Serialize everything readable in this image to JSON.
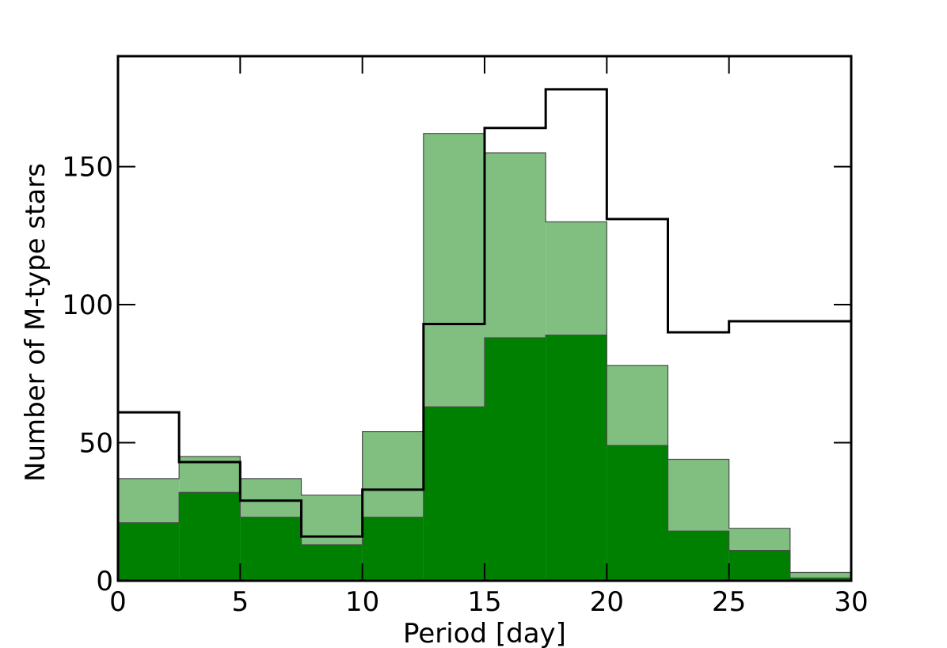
{
  "chart_data": {
    "type": "bar",
    "title": "",
    "xlabel": "Period [day]",
    "ylabel": "Number of M-type stars",
    "xlim": [
      0,
      30
    ],
    "ylim": [
      0,
      190
    ],
    "grid": false,
    "bin_edges": [
      0,
      2.5,
      5,
      7.5,
      10,
      12.5,
      15,
      17.5,
      20,
      22.5,
      25,
      27.5,
      30
    ],
    "x_ticks": [
      "0",
      "5",
      "10",
      "15",
      "20",
      "25",
      "30"
    ],
    "y_ticks": [
      "0",
      "50",
      "100",
      "150"
    ],
    "series": [
      {
        "style": "filled",
        "color": "#80bf80",
        "values": [
          37,
          45,
          37,
          31,
          54,
          162,
          155,
          130,
          78,
          44,
          19,
          3
        ]
      },
      {
        "style": "filled",
        "color": "#008000",
        "values": [
          21,
          32,
          23,
          13,
          23,
          63,
          88,
          89,
          49,
          18,
          11,
          1
        ]
      },
      {
        "style": "step",
        "color": "#000000",
        "values": [
          61,
          43,
          29,
          16,
          33,
          93,
          164,
          178,
          131,
          90,
          94,
          94
        ]
      }
    ]
  }
}
